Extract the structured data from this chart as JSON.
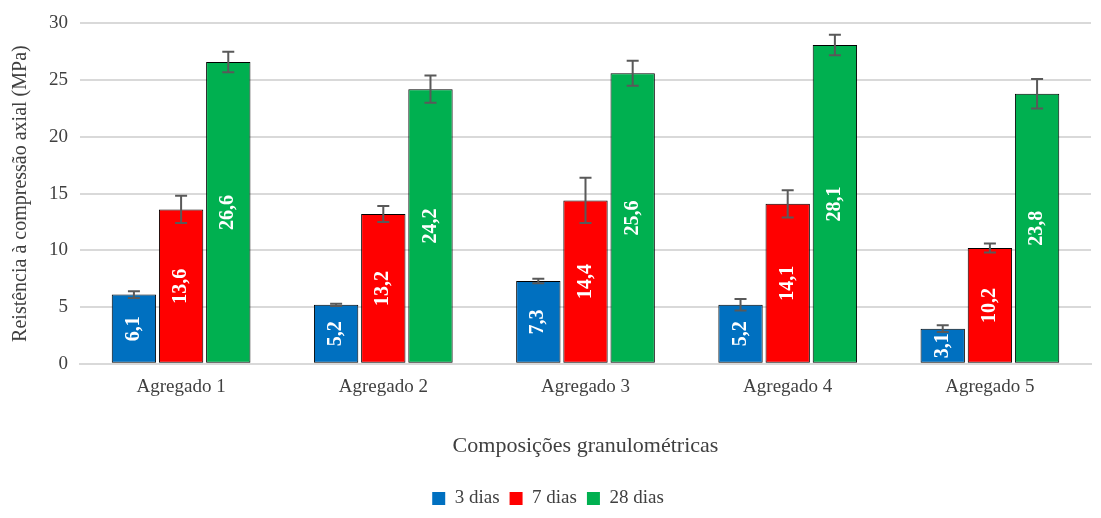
{
  "chart_data": {
    "type": "bar",
    "xlabel": "Composições granulométricas",
    "ylabel": "Reistência à compressão axial (MPa)",
    "categories": [
      "Agregado 1",
      "Agregado 2",
      "Agregado 3",
      "Agregado 4",
      "Agregado 5"
    ],
    "series": [
      {
        "name": "3 dias",
        "color": "#0070c0",
        "values": [
          6.1,
          5.2,
          7.3,
          5.2,
          3.1
        ],
        "value_labels": [
          "6,1",
          "5,2",
          "7,3",
          "5,2",
          "3,1"
        ],
        "errors": [
          0.3,
          0.1,
          0.2,
          0.5,
          0.3
        ]
      },
      {
        "name": "7 dias",
        "color": "#ff0000",
        "values": [
          13.6,
          13.2,
          14.4,
          14.1,
          10.2
        ],
        "value_labels": [
          "13,6",
          "13,2",
          "14,4",
          "14,1",
          "10,2"
        ],
        "errors": [
          1.2,
          0.7,
          2.0,
          1.2,
          0.4
        ]
      },
      {
        "name": "28 dias",
        "color": "#00b050",
        "values": [
          26.6,
          24.2,
          25.6,
          28.1,
          23.8
        ],
        "value_labels": [
          "26,6",
          "24,2",
          "25,6",
          "28,1",
          "23,8"
        ],
        "errors": [
          0.9,
          1.2,
          1.1,
          0.9,
          1.3
        ]
      }
    ],
    "ylim": [
      0,
      30
    ],
    "yticks": [
      0,
      5,
      10,
      15,
      20,
      25,
      30
    ],
    "grid": "y",
    "legend": "bottom"
  }
}
